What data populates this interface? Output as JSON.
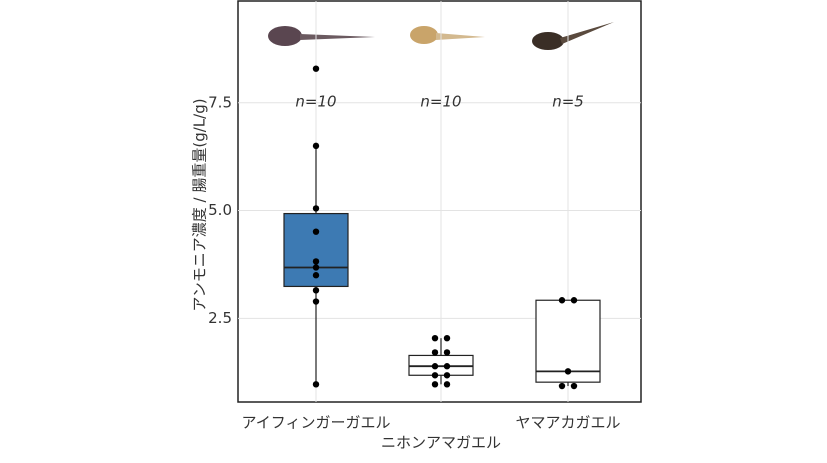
{
  "chart_data": {
    "type": "box",
    "y_label": "アンモニア濃度 / 腸重量(g/L/g)",
    "categories": [
      "アイフィンガーガエル",
      "ニホンアマガエル",
      "ヤマアカガエル"
    ],
    "annotations": [
      "n=10",
      "n=10",
      "n=5"
    ],
    "boxes": [
      {
        "fill": "#3d7ab3",
        "whisker_low": 0.97,
        "q1": 3.24,
        "median": 3.68,
        "q3": 4.93,
        "whisker_high": 6.5,
        "points": [
          8.29,
          6.5,
          5.05,
          4.51,
          3.82,
          3.68,
          3.5,
          3.15,
          2.89,
          0.97
        ]
      },
      {
        "fill": "#ffffff",
        "whisker_low": 0.97,
        "q1": 1.18,
        "median": 1.39,
        "q3": 1.64,
        "whisker_high": 2.04,
        "points": [
          2.04,
          2.04,
          1.71,
          1.71,
          1.39,
          1.39,
          1.18,
          1.18,
          0.97,
          0.97
        ]
      },
      {
        "fill": "#ffffff",
        "whisker_low": 0.93,
        "q1": 1.02,
        "median": 1.27,
        "q3": 2.92,
        "whisker_high": 2.92,
        "points": [
          2.92,
          2.92,
          1.27,
          0.93,
          0.93
        ]
      }
    ],
    "ylim": [
      0.56,
      9.86
    ],
    "yticks": [
      2.5,
      5.0,
      7.5
    ],
    "grid": true
  }
}
